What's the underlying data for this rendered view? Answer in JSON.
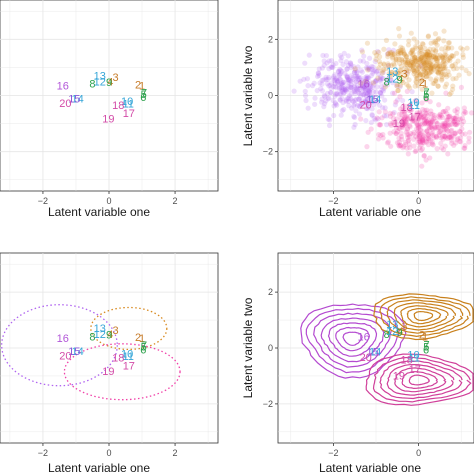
{
  "chart_data": [
    {
      "type": "scatter",
      "panel": "top-left",
      "xlabel": "Latent variable one",
      "ylabel": "",
      "xlim": [
        -3.3,
        3.3
      ],
      "ylim": [
        -3.4,
        3.4
      ],
      "xticks": [
        -2,
        0,
        2
      ],
      "yticks": [],
      "grid": true,
      "points": [
        {
          "label": "1",
          "x": 1.0,
          "y": 0.35,
          "color": "#c77c2a"
        },
        {
          "label": "2",
          "x": 0.88,
          "y": 0.4,
          "color": "#c77c2a"
        },
        {
          "label": "3",
          "x": 0.2,
          "y": 0.65,
          "color": "#c77c2a"
        },
        {
          "label": "4",
          "x": 0.04,
          "y": 0.5,
          "color": "#c77c2a"
        },
        {
          "label": "5",
          "x": 1.05,
          "y": 0.05,
          "color": "#2aa04a"
        },
        {
          "label": "6",
          "x": 1.04,
          "y": -0.05,
          "color": "#2aa04a"
        },
        {
          "label": "7",
          "x": 1.06,
          "y": 0.1,
          "color": "#2aa04a"
        },
        {
          "label": "8",
          "x": -0.5,
          "y": 0.42,
          "color": "#2aa04a"
        },
        {
          "label": "9",
          "x": 0.0,
          "y": 0.48,
          "color": "#2aa04a"
        },
        {
          "label": "10",
          "x": 0.55,
          "y": -0.2,
          "color": "#36a6d8"
        },
        {
          "label": "11",
          "x": 0.58,
          "y": -0.28,
          "color": "#36a6d8"
        },
        {
          "label": "12",
          "x": -0.28,
          "y": 0.5,
          "color": "#36a6d8"
        },
        {
          "label": "13",
          "x": -0.28,
          "y": 0.72,
          "color": "#36a6d8"
        },
        {
          "label": "14",
          "x": -0.95,
          "y": -0.1,
          "color": "#36a6d8"
        },
        {
          "label": "15",
          "x": -1.05,
          "y": -0.1,
          "color": "#8a56d8"
        },
        {
          "label": "16",
          "x": -1.4,
          "y": 0.35,
          "color": "#b256d8"
        },
        {
          "label": "17",
          "x": 0.6,
          "y": -0.62,
          "color": "#d34ca8"
        },
        {
          "label": "18",
          "x": 0.28,
          "y": -0.34,
          "color": "#d34ca8"
        },
        {
          "label": "19",
          "x": -0.02,
          "y": -0.82,
          "color": "#d34ca8"
        },
        {
          "label": "20",
          "x": -1.32,
          "y": -0.27,
          "color": "#d34ca8"
        }
      ]
    },
    {
      "type": "scatter",
      "panel": "top-right",
      "xlabel": "Latent variable one",
      "ylabel": "Latent variable two",
      "xlim": [
        -3.3,
        1.3
      ],
      "ylim": [
        -3.4,
        3.4
      ],
      "xticks": [
        -2,
        0
      ],
      "yticks": [
        -2,
        0,
        2
      ],
      "grid": true,
      "clusters": [
        {
          "color": "#b064f0",
          "cx": -1.55,
          "cy": 0.35,
          "sx": 0.5,
          "sy": 0.55
        },
        {
          "color": "#d88a20",
          "cx": 0.1,
          "cy": 1.15,
          "sx": 0.5,
          "sy": 0.42
        },
        {
          "color": "#f040a8",
          "cx": 0.2,
          "cy": -1.15,
          "sx": 0.55,
          "sy": 0.45
        }
      ],
      "labels": [
        "1",
        "2",
        "3",
        "4",
        "5",
        "6",
        "7",
        "8",
        "9",
        "10",
        "11",
        "12",
        "13",
        "14",
        "15",
        "16",
        "17",
        "18",
        "19",
        "20"
      ]
    },
    {
      "type": "scatter",
      "panel": "bottom-left",
      "xlabel": "Latent variable one",
      "ylabel": "",
      "xlim": [
        -3.3,
        3.3
      ],
      "ylim": [
        -3.4,
        3.4
      ],
      "xticks": [
        -2,
        0,
        2
      ],
      "yticks": [],
      "grid": true,
      "ellipses": [
        {
          "color": "#d88a20",
          "cx": 0.6,
          "cy": 0.7,
          "rx": 1.15,
          "ry": 0.75
        },
        {
          "color": "#b064f0",
          "cx": -1.5,
          "cy": 0.1,
          "rx": 1.75,
          "ry": 1.45
        },
        {
          "color": "#f040a8",
          "cx": 0.4,
          "cy": -0.85,
          "rx": 1.75,
          "ry": 1.0
        }
      ]
    },
    {
      "type": "contour",
      "panel": "bottom-right",
      "xlabel": "Latent variable one",
      "ylabel": "Latent variable two",
      "xlim": [
        -3.3,
        1.3
      ],
      "ylim": [
        -3.4,
        3.4
      ],
      "xticks": [
        -2,
        0
      ],
      "yticks": [
        -2,
        0,
        2
      ],
      "grid": true,
      "densities": [
        {
          "color": "#b44ad0",
          "cx": -1.55,
          "cy": 0.35,
          "sx": 0.55,
          "sy": 0.6
        },
        {
          "color": "#c8801c",
          "cx": 0.1,
          "cy": 1.15,
          "sx": 0.55,
          "sy": 0.35
        },
        {
          "color": "#d0409a",
          "cx": 0.0,
          "cy": -1.15,
          "sx": 0.6,
          "sy": 0.4
        }
      ]
    }
  ]
}
